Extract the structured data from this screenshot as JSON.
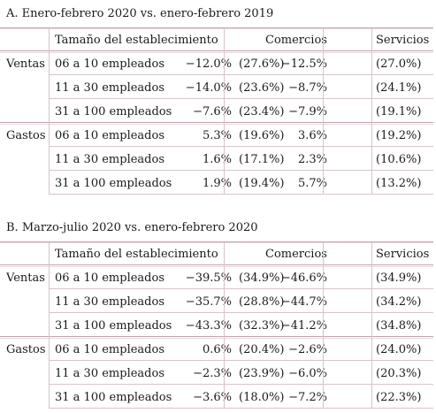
{
  "panels": [
    {
      "title": "A. Enero-febrero 2020 vs. enero-febrero 2019",
      "header": {
        "size": "Tamaño del establecimiento",
        "commerce": "Comercios",
        "services": "Servicios"
      },
      "rows": [
        {
          "group": "Ventas",
          "size": "06 a 10 empleados",
          "v1": "−12.0%",
          "p1": "(27.6%)",
          "v2": "−12.5%",
          "p2": "(27.0%)"
        },
        {
          "group": "",
          "size": "11 a 30 empleados",
          "v1": "−14.0%",
          "p1": "(23.6%)",
          "v2": "−8.7%",
          "p2": "(24.1%)"
        },
        {
          "group": "",
          "size": "31 a 100 empleados",
          "v1": "−7.6%",
          "p1": "(23.4%)",
          "v2": "−7.9%",
          "p2": "(19.1%)"
        },
        {
          "group": "Gastos",
          "size": "06 a 10 empleados",
          "v1": "5.3%",
          "p1": "(19.6%)",
          "v2": "3.6%",
          "p2": "(19.2%)"
        },
        {
          "group": "",
          "size": "11 a 30 empleados",
          "v1": "1.6%",
          "p1": "(17.1%)",
          "v2": "2.3%",
          "p2": "(10.6%)"
        },
        {
          "group": "",
          "size": "31 a 100 empleados",
          "v1": "1.9%",
          "p1": "(19.4%)",
          "v2": "5.7%",
          "p2": "(13.2%)"
        }
      ]
    },
    {
      "title": "B. Marzo-julio 2020 vs. enero-febrero 2020",
      "header": {
        "size": "Tamaño del establecimiento",
        "commerce": "Comercios",
        "services": "Servicios"
      },
      "rows": [
        {
          "group": "Ventas",
          "size": "06 a 10 empleados",
          "v1": "−39.5%",
          "p1": "(34.9%)",
          "v2": "−46.6%",
          "p2": "(34.9%)"
        },
        {
          "group": "",
          "size": "11 a 30 empleados",
          "v1": "−35.7%",
          "p1": "(28.8%)",
          "v2": "−44.7%",
          "p2": "(34.2%)"
        },
        {
          "group": "",
          "size": "31 a 100 empleados",
          "v1": "−43.3%",
          "p1": "(32.3%)",
          "v2": "−41.2%",
          "p2": "(34.8%)"
        },
        {
          "group": "Gastos",
          "size": "06 a 10 empleados",
          "v1": "0.6%",
          "p1": "(20.4%)",
          "v2": "−2.6%",
          "p2": "(24.0%)"
        },
        {
          "group": "",
          "size": "11 a 30 empleados",
          "v1": "−2.3%",
          "p1": "(23.9%)",
          "v2": "−6.0%",
          "p2": "(20.3%)"
        },
        {
          "group": "",
          "size": "31 a 100 empleados",
          "v1": "−3.6%",
          "p1": "(18.0%)",
          "v2": "−7.2%",
          "p2": "(22.3%)"
        }
      ]
    }
  ]
}
